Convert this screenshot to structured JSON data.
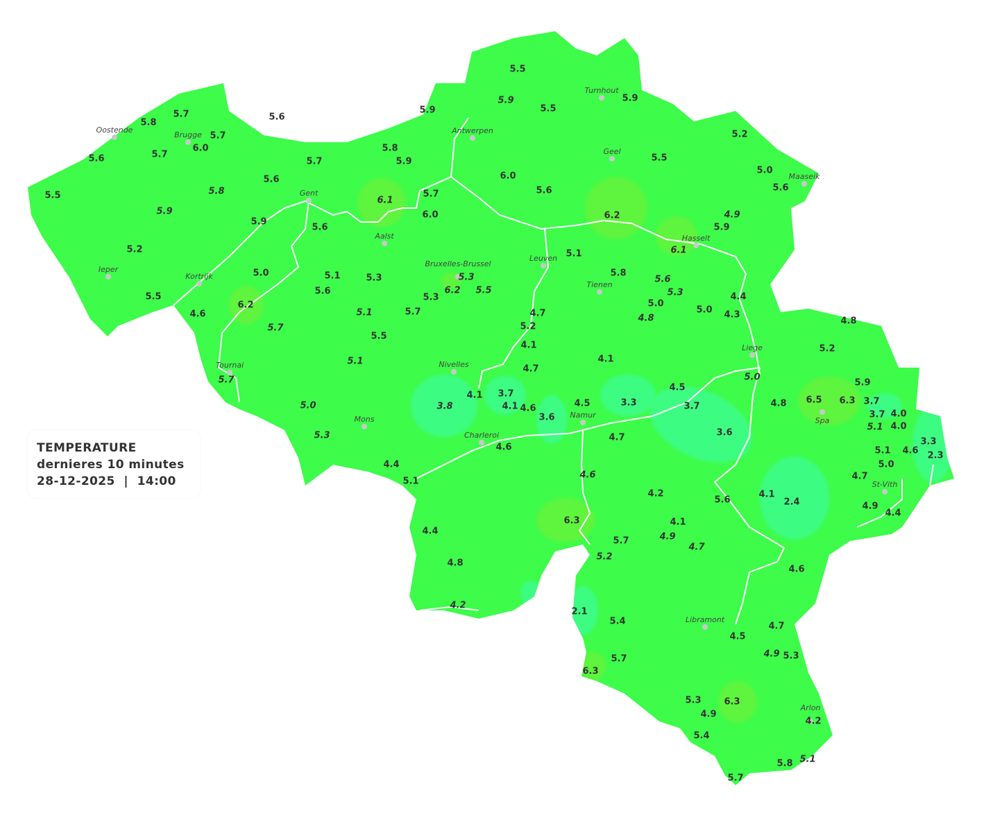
{
  "legend": {
    "title": "TEMPERATURE",
    "subtitle": "dernieres 10 minutes",
    "datetime": "28-12-2025  |  14:00"
  },
  "colors": {
    "base": "#3dfc4a",
    "warm_zone": "#5ef43c",
    "cool_zone": "#3dfc82",
    "border": "#ffffff",
    "text": "#333333"
  },
  "cities": [
    "Oostende",
    "Brugge",
    "Antwerpen",
    "Turnhout",
    "Geel",
    "Maaseik",
    "Gent",
    "Aalst",
    "Hasselt",
    "Leuven",
    "Bruxelles-Brussel",
    "Ieper",
    "Kortrijk",
    "Tienen",
    "Liege",
    "Tournai",
    "Nivelles",
    "Spa",
    "Mons",
    "Namur",
    "Charleroi",
    "St-Vith",
    "Libramont",
    "Arlon"
  ],
  "readings": [
    "5.5",
    "5.9",
    "5.5",
    "5.9",
    "5.7",
    "5.8",
    "5.6",
    "5.9",
    "5.7",
    "6.0",
    "5.7",
    "5.6",
    "5.8",
    "5.9",
    "5.7",
    "5.2",
    "5.5",
    "5.0",
    "5.6",
    "6.0",
    "5.6",
    "5.5",
    "5.6",
    "5.8",
    "5.7",
    "6.1",
    "5.9",
    "6.0",
    "6.2",
    "4.9",
    "5.9",
    "5.6",
    "5.9",
    "6.1",
    "5.2",
    "5.1",
    "5.0",
    "5.1",
    "5.3",
    "5.3",
    "5.8",
    "6.2",
    "5.5",
    "5.6",
    "5.5",
    "5.6",
    "5.3",
    "5.3",
    "6.2",
    "5.0",
    "4.4",
    "4.6",
    "5.1",
    "5.7",
    "4.7",
    "4.8",
    "5.0",
    "4.3",
    "4.8",
    "5.7",
    "5.2",
    "5.5",
    "4.1",
    "5.2",
    "4.1",
    "5.1",
    "5.7",
    "4.7",
    "5.0",
    "5.9",
    "4.5",
    "3.7",
    "4.1",
    "6.5",
    "6.3",
    "3.7",
    "4.8",
    "3.3",
    "3.8",
    "5.0",
    "4.1",
    "4.6",
    "4.5",
    "3.7",
    "3.7",
    "4.0",
    "3.6",
    "5.1",
    "4.0",
    "3.6",
    "5.3",
    "4.7",
    "3.3",
    "4.6",
    "5.1",
    "4.6",
    "2.3",
    "5.0",
    "4.4",
    "4.6",
    "4.7",
    "5.1",
    "4.2",
    "5.6",
    "4.1",
    "2.4",
    "4.9",
    "4.4",
    "6.3",
    "4.1",
    "4.4",
    "4.9",
    "5.7",
    "4.7",
    "5.2",
    "4.8",
    "4.6",
    "4.2",
    "2.1",
    "5.4",
    "4.5",
    "4.7",
    "4.9",
    "5.3",
    "5.7",
    "6.3",
    "6.3",
    "5.3",
    "4.9",
    "4.2",
    "5.4",
    "5.8",
    "5.1",
    "5.7"
  ]
}
